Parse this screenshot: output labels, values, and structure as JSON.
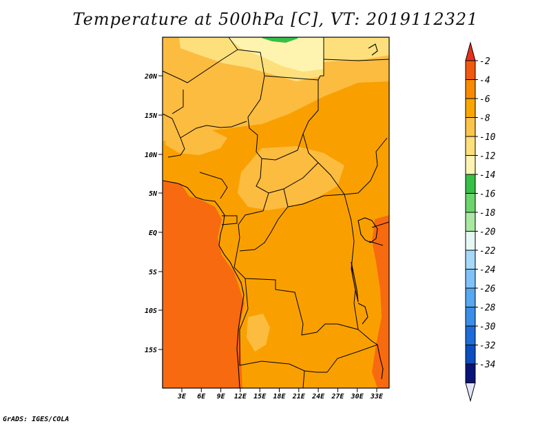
{
  "title": "Temperature at 500hPa [C], VT: 2019112321",
  "credit": "GrADS: IGES/COLA",
  "map": {
    "lat_labels": [
      "20N",
      "15N",
      "10N",
      "5N",
      "EQ",
      "5S",
      "10S",
      "15S"
    ],
    "lon_labels": [
      "3E",
      "6E",
      "9E",
      "12E",
      "15E",
      "18E",
      "21E",
      "24E",
      "27E",
      "30E",
      "33E"
    ],
    "field_colors": {
      "dominant": "#f9a000",
      "warm": "#f86a10",
      "cool": "#fbbc40",
      "cooler": "#fde07c",
      "coolest": "#fef4b0",
      "green": "#36c046"
    }
  },
  "colorbar": {
    "labels": [
      "-2",
      "-4",
      "-6",
      "-8",
      "-10",
      "-12",
      "-14",
      "-16",
      "-18",
      "-20",
      "-22",
      "-24",
      "-26",
      "-28",
      "-30",
      "-32",
      "-34"
    ],
    "colors": [
      "#f05a10",
      "#f98a00",
      "#f9a700",
      "#fbc44a",
      "#fde07c",
      "#fef4b2",
      "#36c046",
      "#6cd46c",
      "#a8e8a0",
      "#e6f8f4",
      "#a6d8f8",
      "#80c2f8",
      "#56a8f0",
      "#3a8ee8",
      "#1e6cd8",
      "#0c4ec0",
      "#081478"
    ],
    "top_color": "#e8301a",
    "bottom_color": "#e4e4f8"
  }
}
